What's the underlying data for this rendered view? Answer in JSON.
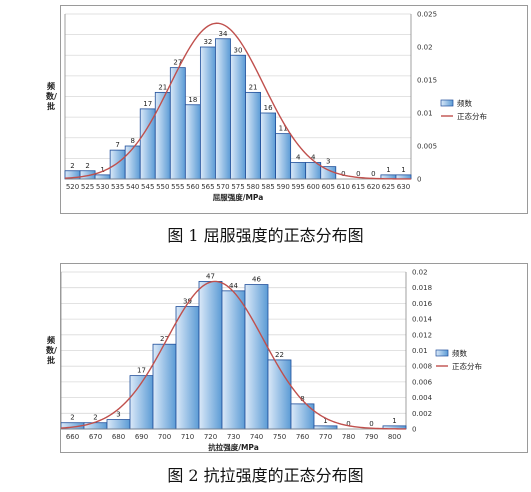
{
  "chart_data": [
    {
      "type": "bar",
      "title": "",
      "xlabel": "屈服强度/MPa",
      "ylabel": "频数/批",
      "ylim": [
        0,
        40
      ],
      "y2lim": [
        0,
        0.025
      ],
      "yticks": [
        "0",
        "5",
        "10",
        "15",
        "20",
        "25",
        "30",
        "35",
        "40"
      ],
      "y2ticks": [
        "0",
        "0.005",
        "0.01",
        "0.015",
        "0.02",
        "0.025"
      ],
      "categories": [
        "520",
        "525",
        "530",
        "535",
        "540",
        "545",
        "550",
        "555",
        "560",
        "565",
        "570",
        "575",
        "580",
        "585",
        "590",
        "595",
        "600",
        "605",
        "610",
        "615",
        "620",
        "625",
        "630"
      ],
      "series": [
        {
          "name": "频数",
          "values": [
            2,
            2,
            1,
            7,
            8,
            17,
            21,
            27,
            18,
            32,
            34,
            30,
            21,
            16,
            11,
            4,
            4,
            3,
            0,
            0,
            0,
            1,
            1
          ]
        },
        {
          "name": "正态分布",
          "type": "line",
          "curve": {
            "mean": 568,
            "sd": 15.5,
            "peak": 0.0236
          }
        }
      ],
      "data_labels": [
        "2",
        "2",
        "1",
        "7",
        "8",
        "17",
        "21",
        "27",
        "18",
        "32",
        "34",
        "30",
        "21",
        "16",
        "11",
        "4",
        "4",
        "3",
        "0",
        "0",
        "0",
        "1",
        "1"
      ],
      "legend": {
        "position": "right",
        "entries": [
          "频数",
          "正态分布"
        ]
      },
      "grid": true,
      "colors": {
        "bar": "#5b9bd5",
        "bar_edge": "#1f4e9a",
        "line": "#c0504d"
      }
    },
    {
      "type": "bar",
      "title": "",
      "xlabel": "抗拉强度/MPa",
      "ylabel": "频数/批",
      "ylim": [
        0,
        50
      ],
      "y2lim": [
        0,
        0.02
      ],
      "yticks": [
        "0",
        "5",
        "10",
        "15",
        "20",
        "25",
        "30",
        "35",
        "40",
        "45",
        "50"
      ],
      "y2ticks": [
        "0",
        "0.002",
        "0.004",
        "0.006",
        "0.008",
        "0.01",
        "0.012",
        "0.014",
        "0.016",
        "0.018",
        "0.02"
      ],
      "categories": [
        "660",
        "670",
        "680",
        "690",
        "700",
        "710",
        "720",
        "730",
        "740",
        "750",
        "760",
        "770",
        "780",
        "790",
        "800"
      ],
      "series": [
        {
          "name": "频数",
          "values": [
            2,
            2,
            3,
            17,
            27,
            39,
            47,
            44,
            46,
            22,
            8,
            1,
            0,
            0,
            1
          ]
        },
        {
          "name": "正态分布",
          "type": "line",
          "curve": {
            "mean": 722,
            "sd": 21,
            "peak": 0.0188
          }
        }
      ],
      "data_labels": [
        "2",
        "2",
        "3",
        "17",
        "27",
        "39",
        "47",
        "44",
        "46",
        "22",
        "8",
        "1",
        "0",
        "0",
        "1"
      ],
      "legend": {
        "position": "right",
        "entries": [
          "频数",
          "正态分布"
        ]
      },
      "grid": true,
      "colors": {
        "bar": "#5b9bd5",
        "bar_edge": "#1f4e9a",
        "line": "#c0504d"
      }
    }
  ],
  "captions": [
    "图 1  屈服强度的正态分布图",
    "图 2  抗拉强度的正态分布图"
  ]
}
